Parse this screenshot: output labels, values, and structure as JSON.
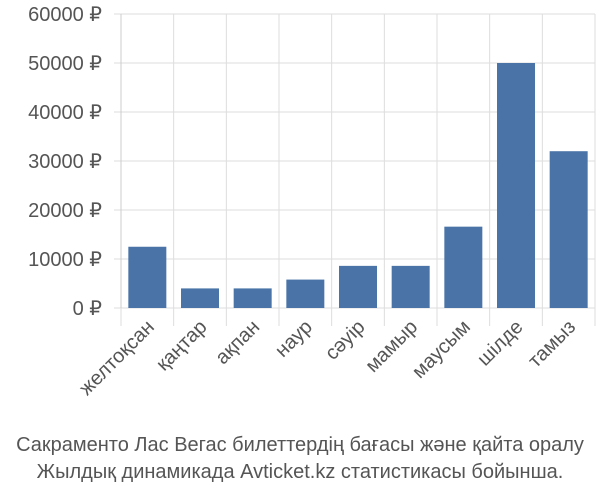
{
  "chart_data": {
    "type": "bar",
    "categories": [
      "желтоқсан",
      "қаңтар",
      "ақпан",
      "наур",
      "сәуір",
      "мамыр",
      "маусым",
      "шілде",
      "тамыз"
    ],
    "values": [
      12500,
      4000,
      4000,
      5800,
      8600,
      8600,
      16600,
      50000,
      32000
    ],
    "ylim": [
      0,
      60000
    ],
    "yticks": [
      0,
      10000,
      20000,
      30000,
      40000,
      50000,
      60000
    ],
    "ytick_labels": [
      "0 ₽",
      "10000 ₽",
      "20000 ₽",
      "30000 ₽",
      "40000 ₽",
      "50000 ₽",
      "60000 ₽"
    ],
    "grid": true,
    "bar_color": "#4a74a8"
  },
  "caption": {
    "line1": "Сакраменто Лас Вегас билеттердің бағасы және қайта оралу",
    "line2": "Жылдық динамикада Avticket.kz статистикасы бойынша."
  }
}
